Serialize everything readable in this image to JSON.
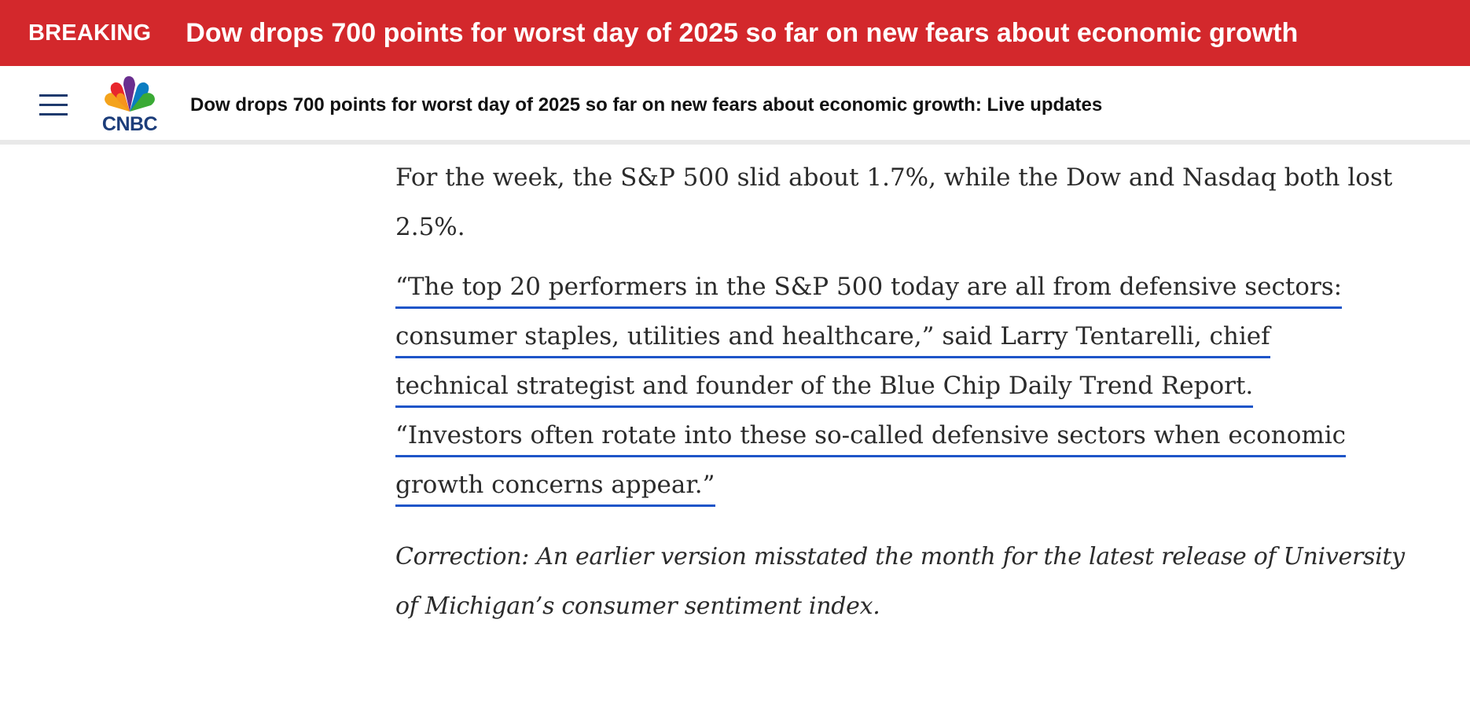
{
  "breaking": {
    "label": "BREAKING",
    "headline": "Dow drops 700 points for worst day of 2025 so far on new fears about economic growth"
  },
  "header": {
    "logo_text": "CNBC",
    "headline": "Dow drops 700 points for worst day of 2025 so far on new fears about economic growth: Live updates"
  },
  "article": {
    "paragraph1": "For the week, the S&P 500 slid about 1.7%, while the Dow and Nasdaq both lost 2.5%.",
    "quote_lines": [
      "“The top 20 performers in the S&P 500 today are all from defensive sectors:",
      "consumer staples, utilities and healthcare,” said Larry Tentarelli, chief",
      "technical strategist and founder of the Blue Chip Daily Trend Report.",
      "“Investors often rotate into these so-called defensive sectors when economic",
      "growth concerns appear.”"
    ],
    "correction": "Correction: An earlier version misstated the month for the latest release of University of Michigan’s consumer sentiment index."
  },
  "colors": {
    "breaking_bg": "#d3282c",
    "link_underline": "#1e55c8",
    "logo_blue": "#1c3d7a"
  }
}
